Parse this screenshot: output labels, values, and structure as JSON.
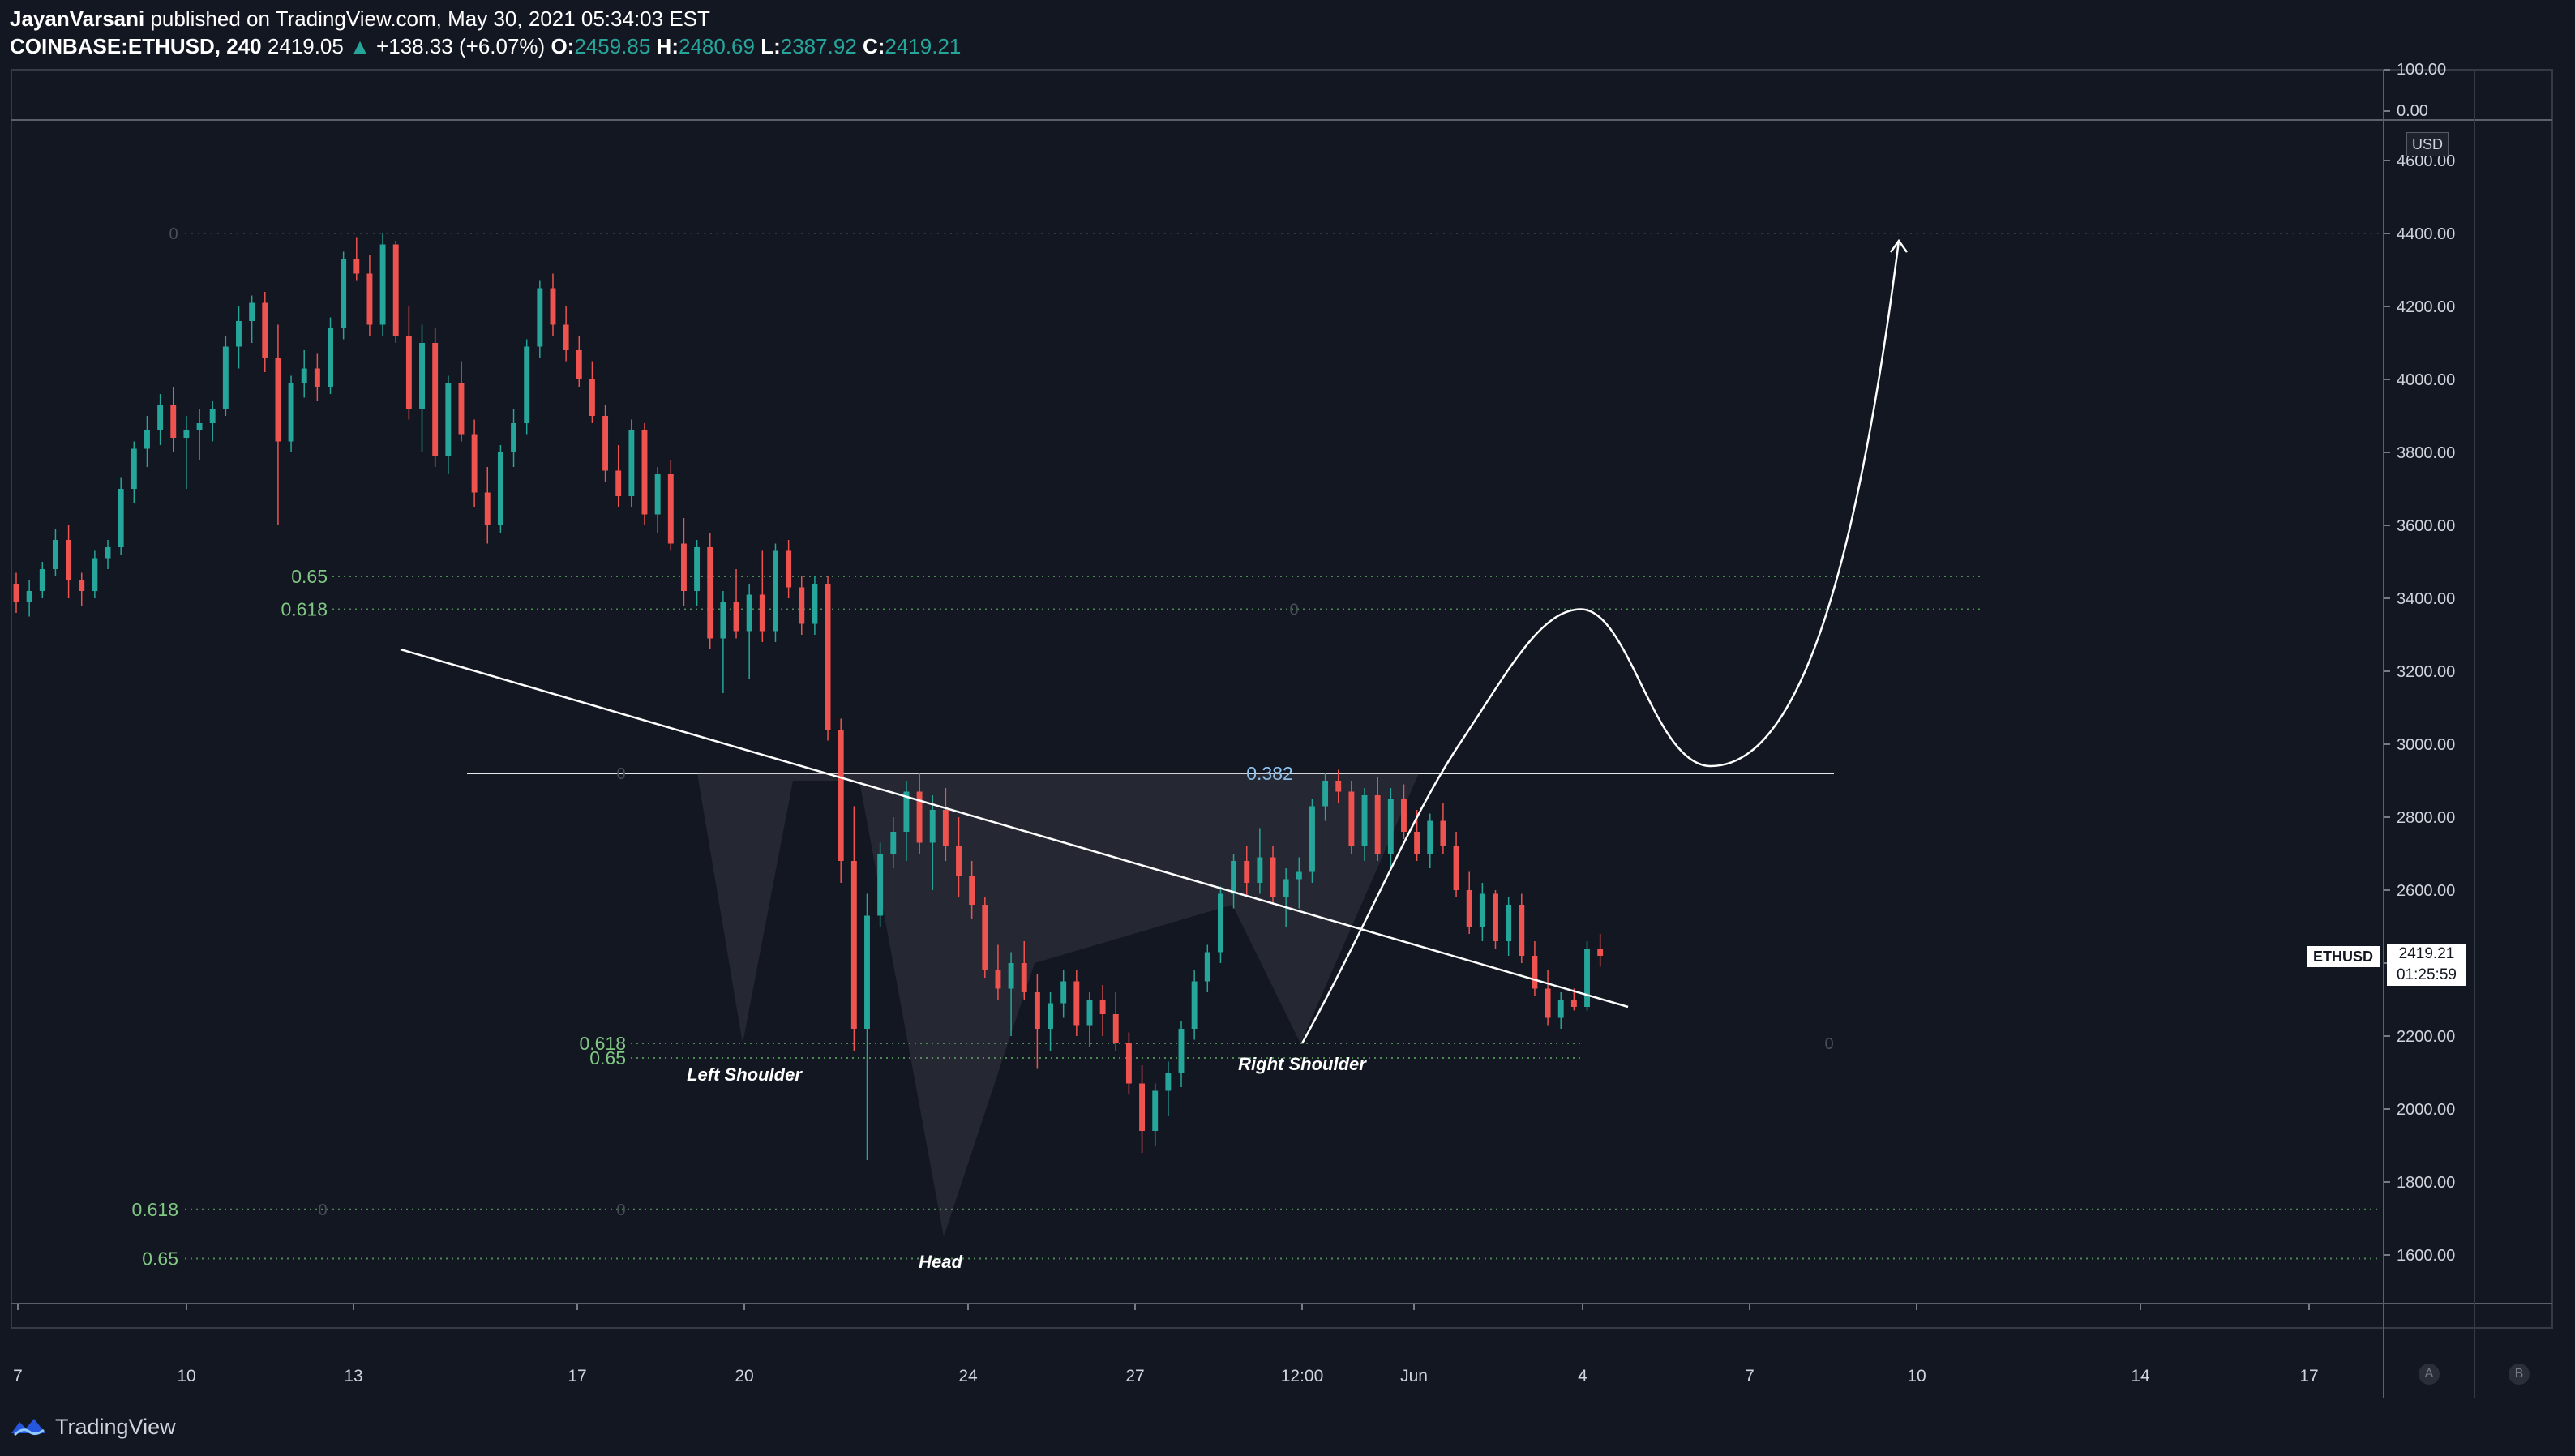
{
  "header": {
    "author": "JayanVarsani",
    "published": "published on TradingView.com, May 30, 2021 05:34:03 EST",
    "symbol": "COINBASE:ETHUSD, 240",
    "last": "2419.05",
    "change": "+138.33 (+6.07%)",
    "o_label": "O:",
    "o": "2459.85",
    "h_label": "H:",
    "h": "2480.69",
    "l_label": "L:",
    "l": "2387.92",
    "c_label": "C:",
    "c": "2419.21"
  },
  "price_tag": {
    "symbol": "ETHUSD",
    "price": "2419.21",
    "countdown": "01:25:59"
  },
  "currency": "USD",
  "footer": {
    "brand": "TradingView"
  },
  "buttons": {
    "a": "A",
    "b": "B"
  },
  "colors": {
    "background": "#131722",
    "up": "#26a69a",
    "down": "#ef5350",
    "fib": "#66bb6a",
    "fib_blue": "#90caf9"
  },
  "chart_data": {
    "type": "candlestick",
    "price_axis": {
      "min": 1500,
      "max": 4700,
      "ticks": [
        "4600.00",
        "4400.00",
        "4200.00",
        "4000.00",
        "3800.00",
        "3600.00",
        "3400.00",
        "3200.00",
        "3000.00",
        "2800.00",
        "2600.00",
        "2400.00",
        "2200.00",
        "2000.00",
        "1800.00",
        "1600.00"
      ]
    },
    "indicator_axis": {
      "ticks": [
        "100.00",
        "0.00"
      ]
    },
    "time_axis": [
      "7",
      "10",
      "13",
      "17",
      "20",
      "24",
      "27",
      "12:00",
      "Jun",
      "4",
      "7",
      "10",
      "14",
      "17"
    ],
    "candles_ohlc": [
      [
        3440,
        3470,
        3360,
        3390
      ],
      [
        3390,
        3450,
        3350,
        3420
      ],
      [
        3420,
        3500,
        3400,
        3480
      ],
      [
        3480,
        3590,
        3460,
        3560
      ],
      [
        3560,
        3600,
        3400,
        3450
      ],
      [
        3450,
        3470,
        3380,
        3420
      ],
      [
        3420,
        3530,
        3400,
        3510
      ],
      [
        3510,
        3560,
        3480,
        3540
      ],
      [
        3540,
        3730,
        3520,
        3700
      ],
      [
        3700,
        3830,
        3660,
        3810
      ],
      [
        3810,
        3900,
        3760,
        3860
      ],
      [
        3860,
        3960,
        3820,
        3930
      ],
      [
        3930,
        3980,
        3800,
        3840
      ],
      [
        3840,
        3900,
        3700,
        3860
      ],
      [
        3860,
        3920,
        3780,
        3880
      ],
      [
        3880,
        3940,
        3830,
        3920
      ],
      [
        3920,
        4120,
        3900,
        4090
      ],
      [
        4090,
        4200,
        4030,
        4160
      ],
      [
        4160,
        4230,
        4100,
        4210
      ],
      [
        4210,
        4240,
        4020,
        4060
      ],
      [
        4060,
        4150,
        3600,
        3830
      ],
      [
        3830,
        4010,
        3800,
        3990
      ],
      [
        3990,
        4080,
        3950,
        4030
      ],
      [
        4030,
        4070,
        3940,
        3980
      ],
      [
        3980,
        4170,
        3960,
        4140
      ],
      [
        4140,
        4350,
        4110,
        4330
      ],
      [
        4330,
        4390,
        4270,
        4290
      ],
      [
        4290,
        4340,
        4120,
        4150
      ],
      [
        4150,
        4400,
        4120,
        4370
      ],
      [
        4370,
        4380,
        4100,
        4120
      ],
      [
        4120,
        4200,
        3890,
        3920
      ],
      [
        3920,
        4150,
        3800,
        4100
      ],
      [
        4100,
        4140,
        3760,
        3790
      ],
      [
        3790,
        4010,
        3740,
        3990
      ],
      [
        3990,
        4050,
        3830,
        3850
      ],
      [
        3850,
        3890,
        3650,
        3690
      ],
      [
        3690,
        3760,
        3550,
        3600
      ],
      [
        3600,
        3820,
        3580,
        3800
      ],
      [
        3800,
        3920,
        3760,
        3880
      ],
      [
        3880,
        4110,
        3850,
        4090
      ],
      [
        4090,
        4270,
        4060,
        4250
      ],
      [
        4250,
        4290,
        4120,
        4150
      ],
      [
        4150,
        4200,
        4050,
        4080
      ],
      [
        4080,
        4120,
        3980,
        4000
      ],
      [
        4000,
        4050,
        3880,
        3900
      ],
      [
        3900,
        3930,
        3720,
        3750
      ],
      [
        3750,
        3820,
        3650,
        3680
      ],
      [
        3680,
        3890,
        3650,
        3860
      ],
      [
        3860,
        3880,
        3600,
        3630
      ],
      [
        3630,
        3760,
        3580,
        3740
      ],
      [
        3740,
        3780,
        3530,
        3550
      ],
      [
        3550,
        3620,
        3380,
        3420
      ],
      [
        3420,
        3560,
        3380,
        3540
      ],
      [
        3540,
        3580,
        3260,
        3290
      ],
      [
        3290,
        3420,
        3140,
        3390
      ],
      [
        3390,
        3480,
        3290,
        3310
      ],
      [
        3310,
        3440,
        3180,
        3410
      ],
      [
        3410,
        3530,
        3280,
        3310
      ],
      [
        3310,
        3550,
        3280,
        3530
      ],
      [
        3530,
        3560,
        3400,
        3430
      ],
      [
        3430,
        3460,
        3300,
        3330
      ],
      [
        3330,
        3460,
        3300,
        3440
      ],
      [
        3440,
        3460,
        3010,
        3040
      ],
      [
        3040,
        3070,
        2620,
        2680
      ],
      [
        2680,
        2830,
        2160,
        2220
      ],
      [
        2220,
        2590,
        1860,
        2530
      ],
      [
        2530,
        2730,
        2500,
        2700
      ],
      [
        2700,
        2800,
        2660,
        2760
      ],
      [
        2760,
        2900,
        2680,
        2870
      ],
      [
        2870,
        2920,
        2700,
        2730
      ],
      [
        2730,
        2860,
        2600,
        2820
      ],
      [
        2820,
        2880,
        2680,
        2720
      ],
      [
        2720,
        2800,
        2580,
        2640
      ],
      [
        2640,
        2680,
        2520,
        2560
      ],
      [
        2560,
        2580,
        2360,
        2380
      ],
      [
        2380,
        2450,
        2300,
        2330
      ],
      [
        2330,
        2430,
        2200,
        2400
      ],
      [
        2400,
        2460,
        2300,
        2320
      ],
      [
        2320,
        2370,
        2110,
        2220
      ],
      [
        2220,
        2320,
        2160,
        2290
      ],
      [
        2290,
        2380,
        2250,
        2350
      ],
      [
        2350,
        2380,
        2200,
        2230
      ],
      [
        2230,
        2320,
        2170,
        2300
      ],
      [
        2300,
        2340,
        2200,
        2260
      ],
      [
        2260,
        2320,
        2160,
        2180
      ],
      [
        2180,
        2210,
        2040,
        2070
      ],
      [
        2070,
        2120,
        1880,
        1940
      ],
      [
        1940,
        2070,
        1900,
        2050
      ],
      [
        2050,
        2130,
        1980,
        2100
      ],
      [
        2100,
        2240,
        2060,
        2220
      ],
      [
        2220,
        2380,
        2190,
        2350
      ],
      [
        2350,
        2450,
        2320,
        2430
      ],
      [
        2430,
        2610,
        2400,
        2590
      ],
      [
        2590,
        2700,
        2550,
        2680
      ],
      [
        2680,
        2720,
        2580,
        2620
      ],
      [
        2620,
        2770,
        2590,
        2690
      ],
      [
        2690,
        2720,
        2560,
        2580
      ],
      [
        2580,
        2660,
        2500,
        2630
      ],
      [
        2630,
        2690,
        2550,
        2650
      ],
      [
        2650,
        2850,
        2620,
        2830
      ],
      [
        2830,
        2920,
        2790,
        2900
      ],
      [
        2900,
        2930,
        2840,
        2870
      ],
      [
        2870,
        2900,
        2700,
        2720
      ],
      [
        2720,
        2880,
        2680,
        2860
      ],
      [
        2860,
        2910,
        2680,
        2700
      ],
      [
        2700,
        2880,
        2660,
        2850
      ],
      [
        2850,
        2890,
        2740,
        2760
      ],
      [
        2760,
        2820,
        2680,
        2700
      ],
      [
        2700,
        2810,
        2660,
        2790
      ],
      [
        2790,
        2840,
        2700,
        2720
      ],
      [
        2720,
        2760,
        2580,
        2600
      ],
      [
        2600,
        2650,
        2480,
        2500
      ],
      [
        2500,
        2620,
        2460,
        2590
      ],
      [
        2590,
        2600,
        2440,
        2460
      ],
      [
        2460,
        2580,
        2420,
        2560
      ],
      [
        2560,
        2590,
        2400,
        2420
      ],
      [
        2420,
        2460,
        2310,
        2330
      ],
      [
        2330,
        2380,
        2230,
        2250
      ],
      [
        2250,
        2320,
        2220,
        2300
      ],
      [
        2300,
        2330,
        2270,
        2280
      ],
      [
        2280,
        2460,
        2270,
        2440
      ],
      [
        2440,
        2480,
        2390,
        2420
      ]
    ],
    "fib_levels": [
      {
        "label": "0.65",
        "price": 3460
      },
      {
        "label": "0.618",
        "price": 3370
      },
      {
        "label": "0.382",
        "price": 2920
      },
      {
        "label": "0.618",
        "price": 2180
      },
      {
        "label": "0.65",
        "price": 2140
      },
      {
        "label": "0.618",
        "price": 1725
      },
      {
        "label": "0.65",
        "price": 1590
      }
    ],
    "fib_zero_marks": [
      "0",
      "0",
      "0",
      "0",
      "0",
      "0"
    ],
    "annotations": [
      "Left Shoulder",
      "Head",
      "Right Shoulder"
    ]
  }
}
